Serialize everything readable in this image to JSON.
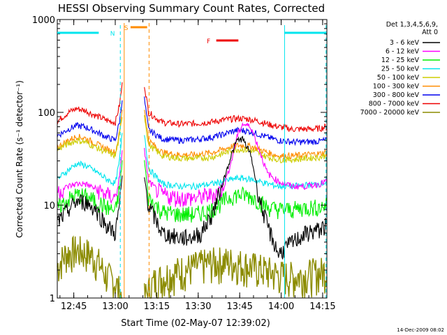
{
  "chart_data": {
    "type": "line",
    "title": "HESSI Observing Summary Count Rates, Corrected",
    "xlabel": "Start Time (02-May-07 12:39:02)",
    "ylabel": "Corrected Count Rate (s⁻¹ detector⁻¹)",
    "yscale": "log",
    "ylim": [
      1,
      1000
    ],
    "xlim_minutes": [
      0,
      97.5
    ],
    "x_ticks": [
      {
        "label": "12:45",
        "minute": 5.97
      },
      {
        "label": "13:00",
        "minute": 20.97
      },
      {
        "label": "13:15",
        "minute": 35.97
      },
      {
        "label": "13:30",
        "minute": 50.97
      },
      {
        "label": "13:45",
        "minute": 65.97
      },
      {
        "label": "14:00",
        "minute": 80.97
      },
      {
        "label": "14:15",
        "minute": 95.97
      }
    ],
    "y_ticks": [
      {
        "label": "1",
        "value": 1
      },
      {
        "label": "10",
        "value": 10
      },
      {
        "label": "100",
        "value": 100
      },
      {
        "label": "1000",
        "value": 1000
      }
    ],
    "legend": {
      "header": [
        "Det 1,3,4,5,6,9,",
        "Att 0"
      ],
      "placement": "right"
    },
    "annotations": [
      {
        "text": "N",
        "color": "#00e5ee"
      },
      {
        "text": "S",
        "color": "#ff8c00"
      },
      {
        "text": "F",
        "color": "#ee0000"
      }
    ],
    "timestamp": "14-Dec-2009 08:02",
    "data_gap_minutes": [
      23.5,
      31.5
    ],
    "series": [
      {
        "name": "3 - 6 keV",
        "color": "#000000",
        "x": [
          0,
          4,
          7,
          10,
          14,
          18,
          21,
          22.5,
          23.5,
          31.5,
          33,
          38,
          44,
          48,
          52,
          56,
          60,
          63,
          65,
          67,
          70,
          73,
          76,
          80,
          85,
          90,
          95,
          97
        ],
        "y": [
          6.5,
          9,
          11,
          11,
          9,
          6,
          5,
          10,
          20,
          20,
          10,
          5,
          4.5,
          4.5,
          5,
          8,
          18,
          35,
          50,
          52,
          35,
          12,
          6,
          3,
          4,
          5,
          5.5,
          6
        ]
      },
      {
        "name": "6 - 12 keV",
        "color": "#ff00ff",
        "x": [
          0,
          4,
          7,
          10,
          14,
          18,
          21,
          22.5,
          23.5,
          31.5,
          33,
          38,
          44,
          50,
          56,
          60,
          63,
          65,
          67,
          70,
          73,
          76,
          80,
          85,
          90,
          95,
          97
        ],
        "y": [
          14,
          16,
          17,
          17,
          15,
          13,
          12,
          20,
          40,
          40,
          18,
          13,
          12,
          12,
          13,
          15,
          30,
          55,
          75,
          70,
          40,
          22,
          18,
          16,
          16,
          17,
          18
        ]
      },
      {
        "name": "12 - 25 keV",
        "color": "#00ee00",
        "x": [
          0,
          4,
          7,
          10,
          14,
          18,
          21,
          22.5,
          23.5,
          31.5,
          33,
          38,
          44,
          50,
          56,
          60,
          63,
          65,
          67,
          70,
          73,
          76,
          80,
          85,
          90,
          95,
          97
        ],
        "y": [
          9.5,
          11.5,
          13,
          12.5,
          11,
          9.5,
          8.5,
          15,
          30,
          30,
          12,
          8.5,
          8,
          8,
          9,
          11,
          12.5,
          13,
          13,
          12.5,
          11,
          9.5,
          9,
          9,
          9.5,
          9.5,
          10
        ]
      },
      {
        "name": "25 - 50 keV",
        "color": "#00e5ee",
        "x": [
          0,
          4,
          7,
          10,
          14,
          18,
          21,
          22.5,
          23.5,
          31.5,
          33,
          38,
          44,
          50,
          56,
          60,
          63,
          65,
          67,
          70,
          73,
          76,
          80,
          85,
          90,
          95,
          97
        ],
        "y": [
          19,
          24,
          28,
          27,
          23,
          19,
          17,
          30,
          60,
          60,
          25,
          17,
          16,
          16,
          17,
          18,
          19,
          19.5,
          19.5,
          19,
          18,
          17,
          16,
          16,
          16.5,
          17,
          17.5
        ]
      },
      {
        "name": "50 - 100 keV",
        "color": "#cdcd00",
        "x": [
          0,
          4,
          7,
          10,
          14,
          18,
          21,
          22.5,
          23.5,
          31.5,
          33,
          38,
          44,
          50,
          56,
          60,
          63,
          65,
          67,
          70,
          73,
          76,
          80,
          85,
          90,
          95,
          97
        ],
        "y": [
          40,
          46,
          50,
          48,
          42,
          37,
          34,
          55,
          95,
          95,
          45,
          34,
          32,
          32,
          33,
          36,
          39,
          40,
          40,
          39,
          36,
          33,
          31,
          31,
          32,
          33,
          34
        ]
      },
      {
        "name": "100 - 300 keV",
        "color": "#ff8c00",
        "x": [
          0,
          4,
          7,
          10,
          14,
          18,
          21,
          22.5,
          23.5,
          31.5,
          33,
          38,
          44,
          50,
          56,
          60,
          63,
          65,
          67,
          70,
          73,
          76,
          80,
          85,
          90,
          95,
          97
        ],
        "y": [
          42,
          50,
          55,
          53,
          46,
          40,
          37,
          60,
          110,
          110,
          50,
          37,
          35,
          35,
          37,
          40,
          43,
          44,
          44,
          43,
          40,
          37,
          34,
          34,
          35,
          36,
          37
        ]
      },
      {
        "name": "300 - 800 keV",
        "color": "#0000ee",
        "x": [
          0,
          4,
          7,
          10,
          14,
          18,
          21,
          22.5,
          23.5,
          31.5,
          33,
          38,
          44,
          50,
          56,
          60,
          63,
          65,
          67,
          70,
          73,
          76,
          80,
          85,
          90,
          95,
          97
        ],
        "y": [
          56,
          66,
          72,
          70,
          62,
          54,
          50,
          80,
          140,
          140,
          65,
          52,
          50,
          51,
          54,
          58,
          62,
          64,
          64,
          62,
          58,
          54,
          50,
          48,
          48,
          49,
          50
        ]
      },
      {
        "name": "800 - 7000 keV",
        "color": "#ee0000",
        "x": [
          0,
          4,
          7,
          10,
          14,
          18,
          21,
          22.5,
          23.5,
          31.5,
          33,
          38,
          44,
          50,
          56,
          60,
          63,
          65,
          67,
          70,
          73,
          76,
          80,
          85,
          90,
          95,
          97
        ],
        "y": [
          80,
          100,
          110,
          105,
          92,
          82,
          78,
          120,
          200,
          200,
          100,
          78,
          75,
          76,
          79,
          83,
          85,
          86,
          86,
          84,
          80,
          75,
          70,
          66,
          66,
          67,
          70
        ]
      },
      {
        "name": "7000 - 20000 keV",
        "color": "#8b8b00",
        "x": [
          0,
          3,
          7,
          12,
          15,
          18,
          21,
          23.5,
          31.5,
          35,
          40,
          45,
          50,
          55,
          60,
          65,
          70,
          75,
          80,
          85,
          90,
          95,
          97
        ],
        "y": [
          2.2,
          3,
          3.3,
          3,
          2.4,
          1.7,
          1.5,
          1,
          1,
          1.5,
          1.8,
          2,
          2.2,
          2.4,
          2.5,
          2.4,
          2.2,
          2,
          1.8,
          1.7,
          1.8,
          1.9,
          2
        ]
      }
    ]
  }
}
